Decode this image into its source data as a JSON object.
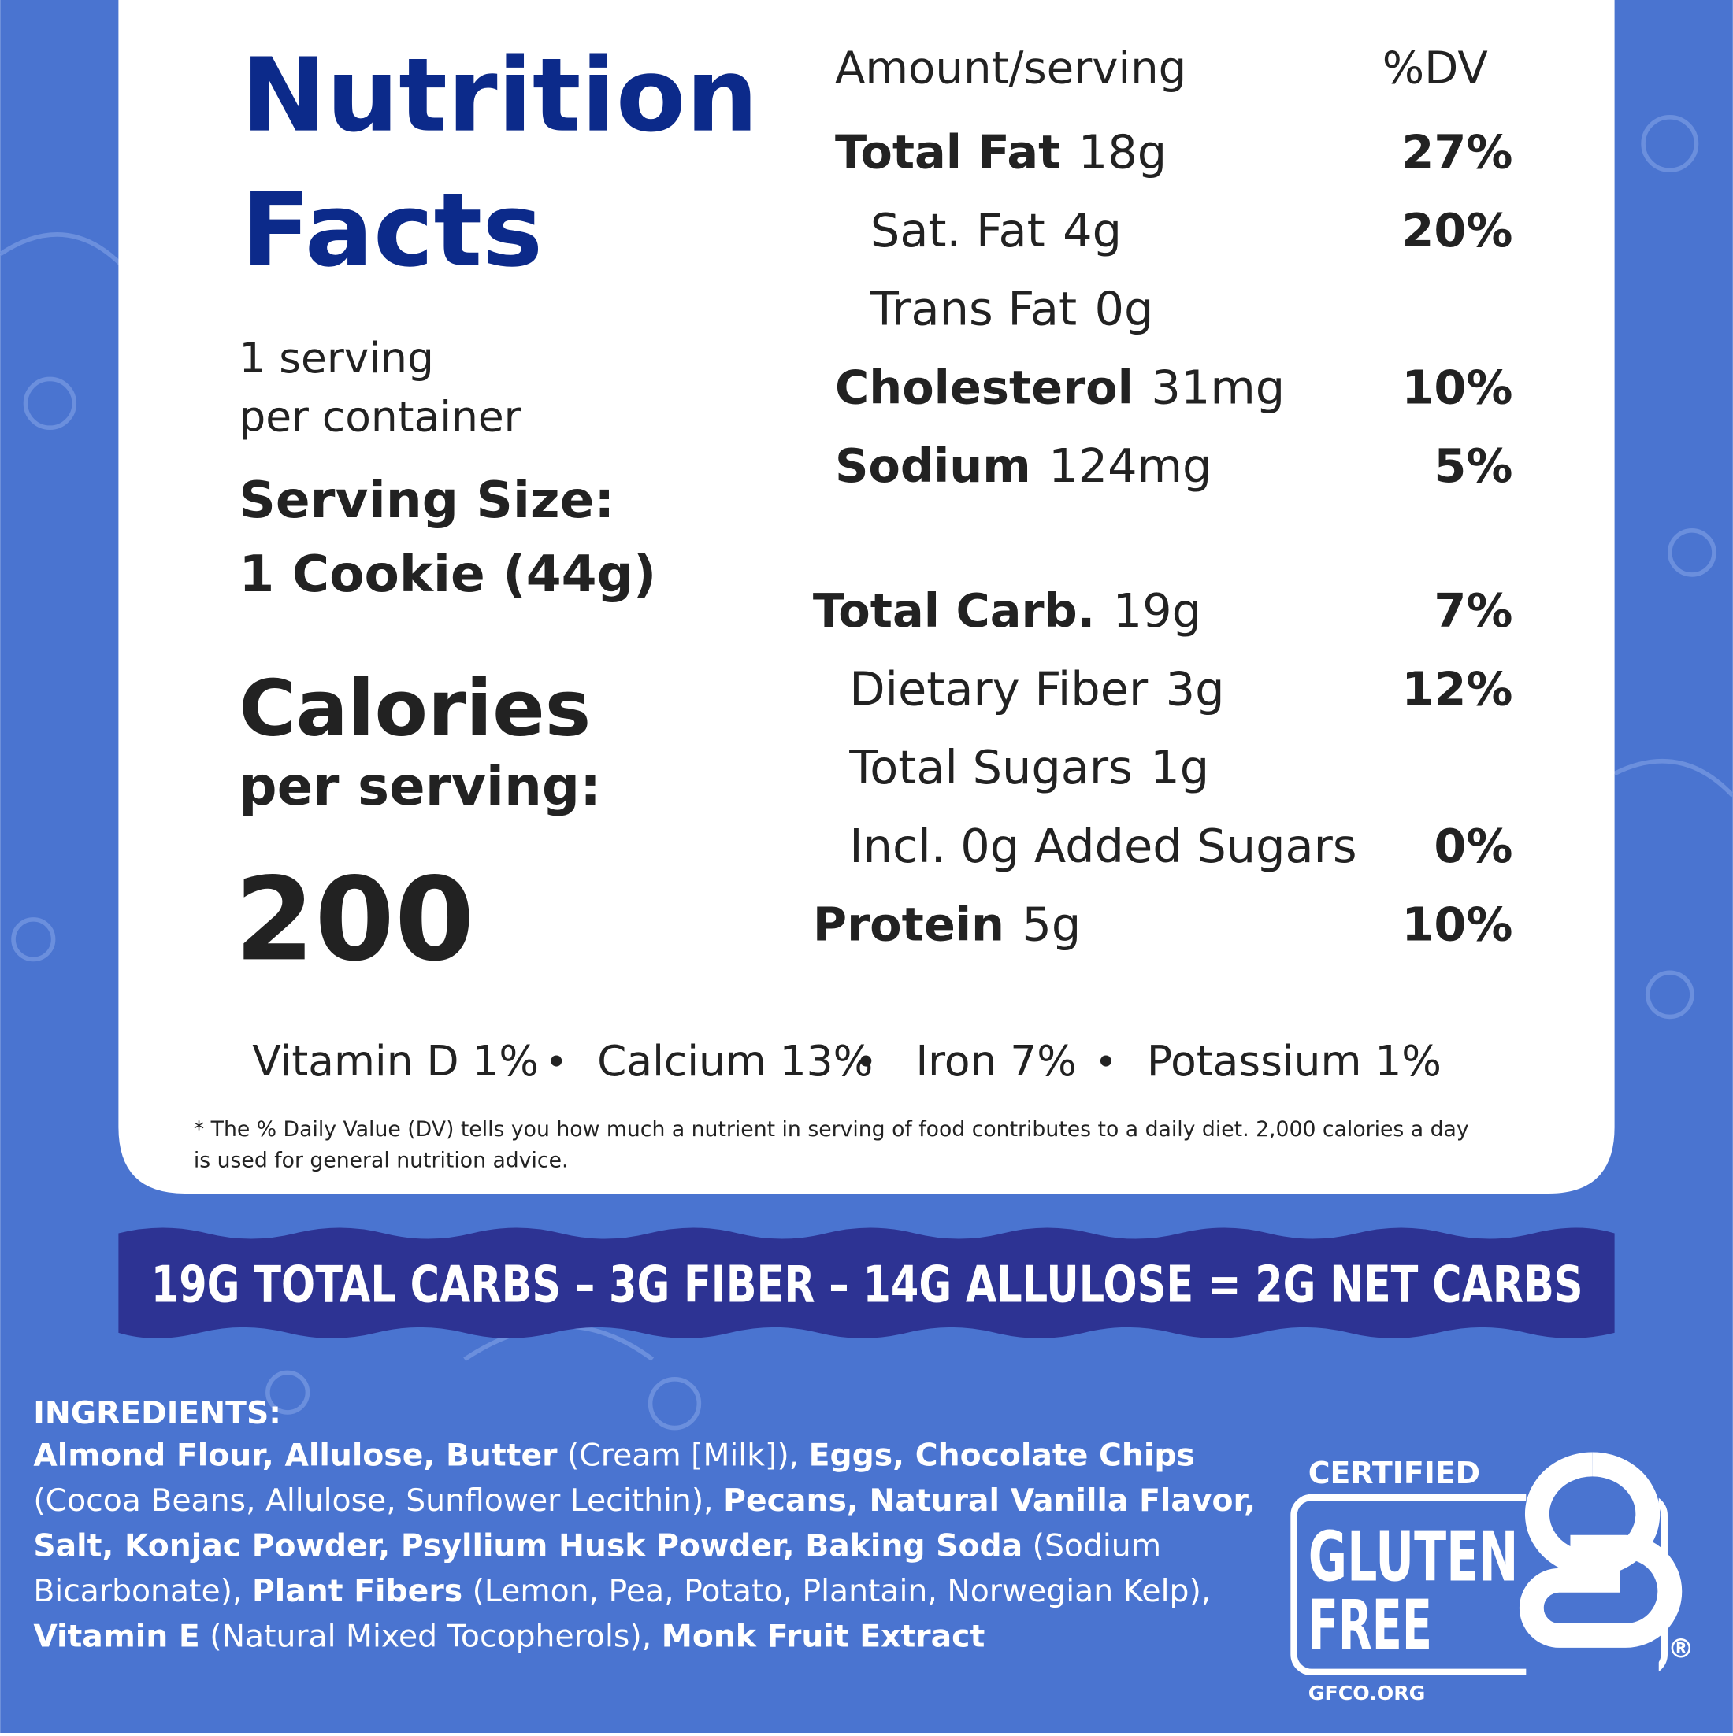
{
  "header": {
    "title_lines": [
      "Nutrition",
      "Facts"
    ],
    "servings_lines": [
      "1 serving",
      "per container"
    ],
    "serving_size": {
      "label": "Serving Size:",
      "value": "1 Cookie (44g)"
    },
    "calories": {
      "label": "Calories",
      "sublabel": "per serving:",
      "value": 200
    }
  },
  "columns": {
    "amount": "Amount/serving",
    "dv": "%DV"
  },
  "nutrient_blocks": [
    [
      {
        "name": "Total Fat",
        "amount": "18g",
        "dv": "27%",
        "sub": [
          {
            "name": "Sat. Fat",
            "amount": "4g",
            "dv": "20%"
          },
          {
            "name": "Trans Fat",
            "amount": "0g"
          }
        ]
      },
      {
        "name": "Cholesterol",
        "amount": "31mg",
        "dv": "10%"
      },
      {
        "name": "Sodium",
        "amount": "124mg",
        "dv": "5%"
      }
    ],
    [
      {
        "name": "Total Carb.",
        "amount": "19g",
        "dv": "7%",
        "sub": [
          {
            "name": "Dietary Fiber",
            "amount": "3g",
            "dv": "12%"
          },
          {
            "name": "Total Sugars",
            "amount": "1g"
          },
          {
            "name": "Incl. 0g Added Sugars",
            "dv": "0%"
          }
        ]
      },
      {
        "name": "Protein",
        "amount": "5g",
        "dv": "10%"
      }
    ]
  ],
  "vitamins": [
    "Vitamin D 1%",
    "Calcium 13%",
    "Iron 7%",
    "Potassium 1%"
  ],
  "footnote": "* The % Daily Value (DV) tells you how much a nutrient in serving of food contributes to a daily diet. 2,000 calories a day is used for general nutrition advice.",
  "banner": "19G  TOTAL CARBS  –  3G FIBER –  14G ALLULOSE = 2G NET CARBS",
  "ingredients": {
    "heading": "INGREDIENTS:",
    "segments": [
      {
        "text": "Almond Flour, Allulose, Butter",
        "bold": true
      },
      {
        "text": " (Cream [Milk]), ",
        "bold": false
      },
      {
        "text": "Eggs, Chocolate Chips",
        "bold": true
      },
      {
        "text": " (Cocoa Beans, Allulose, Sunflower Lecithin), ",
        "bold": false
      },
      {
        "text": "Pecans, Natural Vanilla Flavor, Salt, Konjac Powder, Psyllium Husk Powder, Baking Soda",
        "bold": true
      },
      {
        "text": " (Sodium Bicarbonate), ",
        "bold": false
      },
      {
        "text": "Plant Fibers",
        "bold": true
      },
      {
        "text": " (Lemon, Pea, Potato, Plantain, Norwegian Kelp), ",
        "bold": false
      },
      {
        "text": "Vitamin E",
        "bold": true
      },
      {
        "text": " (Natural Mixed Tocopherols), ",
        "bold": false
      },
      {
        "text": "Monk Fruit Extract",
        "bold": true
      }
    ]
  },
  "badge": {
    "top": "CERTIFIED",
    "line1": "GLUTEN",
    "line2": "FREE",
    "site": "GFCO.ORG",
    "mark": "®"
  }
}
